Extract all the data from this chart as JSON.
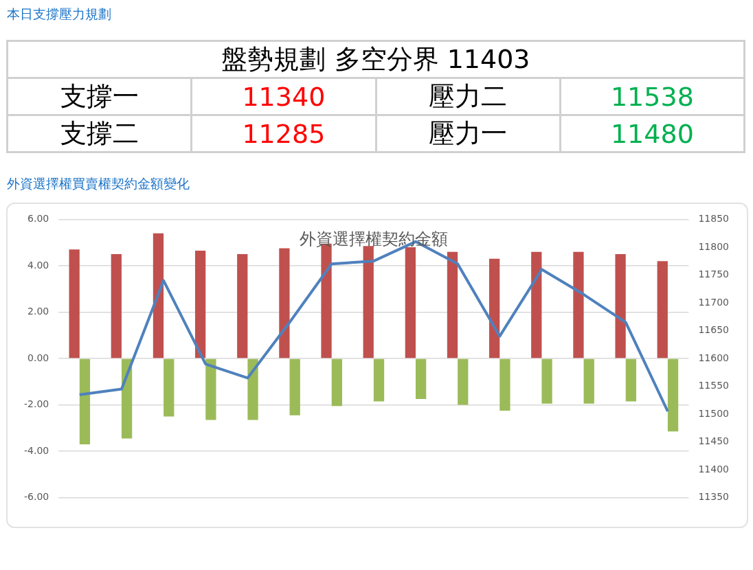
{
  "chart_data": [
    {
      "type": "other",
      "title": "本日支撐壓力規劃",
      "subtitle": "盤勢規劃 多空分界 11403",
      "categories": [
        "支撐一",
        "壓力二",
        "支撐二",
        "壓力一"
      ],
      "values": [
        11340,
        11538,
        11285,
        11480
      ],
      "colors": [
        "#ff0000",
        "#00b050",
        "#ff0000",
        "#00b050"
      ],
      "data_labels": true
    },
    {
      "type": "bar",
      "title": "外資選擇權買賣權契約金額變化",
      "subtitle": "外資選擇權契約金額",
      "categories": [
        null,
        null,
        null,
        null,
        null,
        null,
        null,
        null,
        null,
        null,
        null,
        null,
        null,
        null,
        null
      ],
      "series": [
        {
          "type": "bar",
          "color": "#c0504d",
          "values": [
            4.7,
            4.5,
            5.4,
            4.65,
            4.5,
            4.75,
            4.95,
            4.85,
            4.8,
            4.6,
            4.3,
            4.6,
            4.6,
            4.5,
            4.2
          ]
        },
        {
          "type": "bar",
          "color": "#9bbb59",
          "values": [
            -3.7,
            -3.45,
            -2.5,
            -2.65,
            -2.65,
            -2.45,
            -2.05,
            -1.85,
            -1.75,
            -2.0,
            -2.25,
            -1.95,
            -1.95,
            -1.85,
            -3.15
          ]
        },
        {
          "type": "line",
          "axis": "y2",
          "color": "#4f81bd",
          "values": [
            11535,
            11545,
            11740,
            11590,
            11565,
            11665,
            11770,
            11775,
            11810,
            11770,
            11640,
            11760,
            11715,
            11665,
            11505
          ]
        }
      ],
      "ylim": [
        -6,
        6
      ],
      "yticks": [
        {
          "value": -6,
          "label": "-6.00"
        },
        {
          "value": -4,
          "label": "-4.00"
        },
        {
          "value": -2,
          "label": "-2.00"
        },
        {
          "value": 0,
          "label": "0.00"
        },
        {
          "value": 2,
          "label": "2.00"
        },
        {
          "value": 4,
          "label": "4.00"
        },
        {
          "value": 6,
          "label": "6.00"
        }
      ],
      "y2lim": [
        11350,
        11850
      ],
      "y2ticks": [
        11350,
        11400,
        11450,
        11500,
        11550,
        11600,
        11650,
        11700,
        11750,
        11800,
        11850
      ],
      "grid": "y"
    }
  ]
}
